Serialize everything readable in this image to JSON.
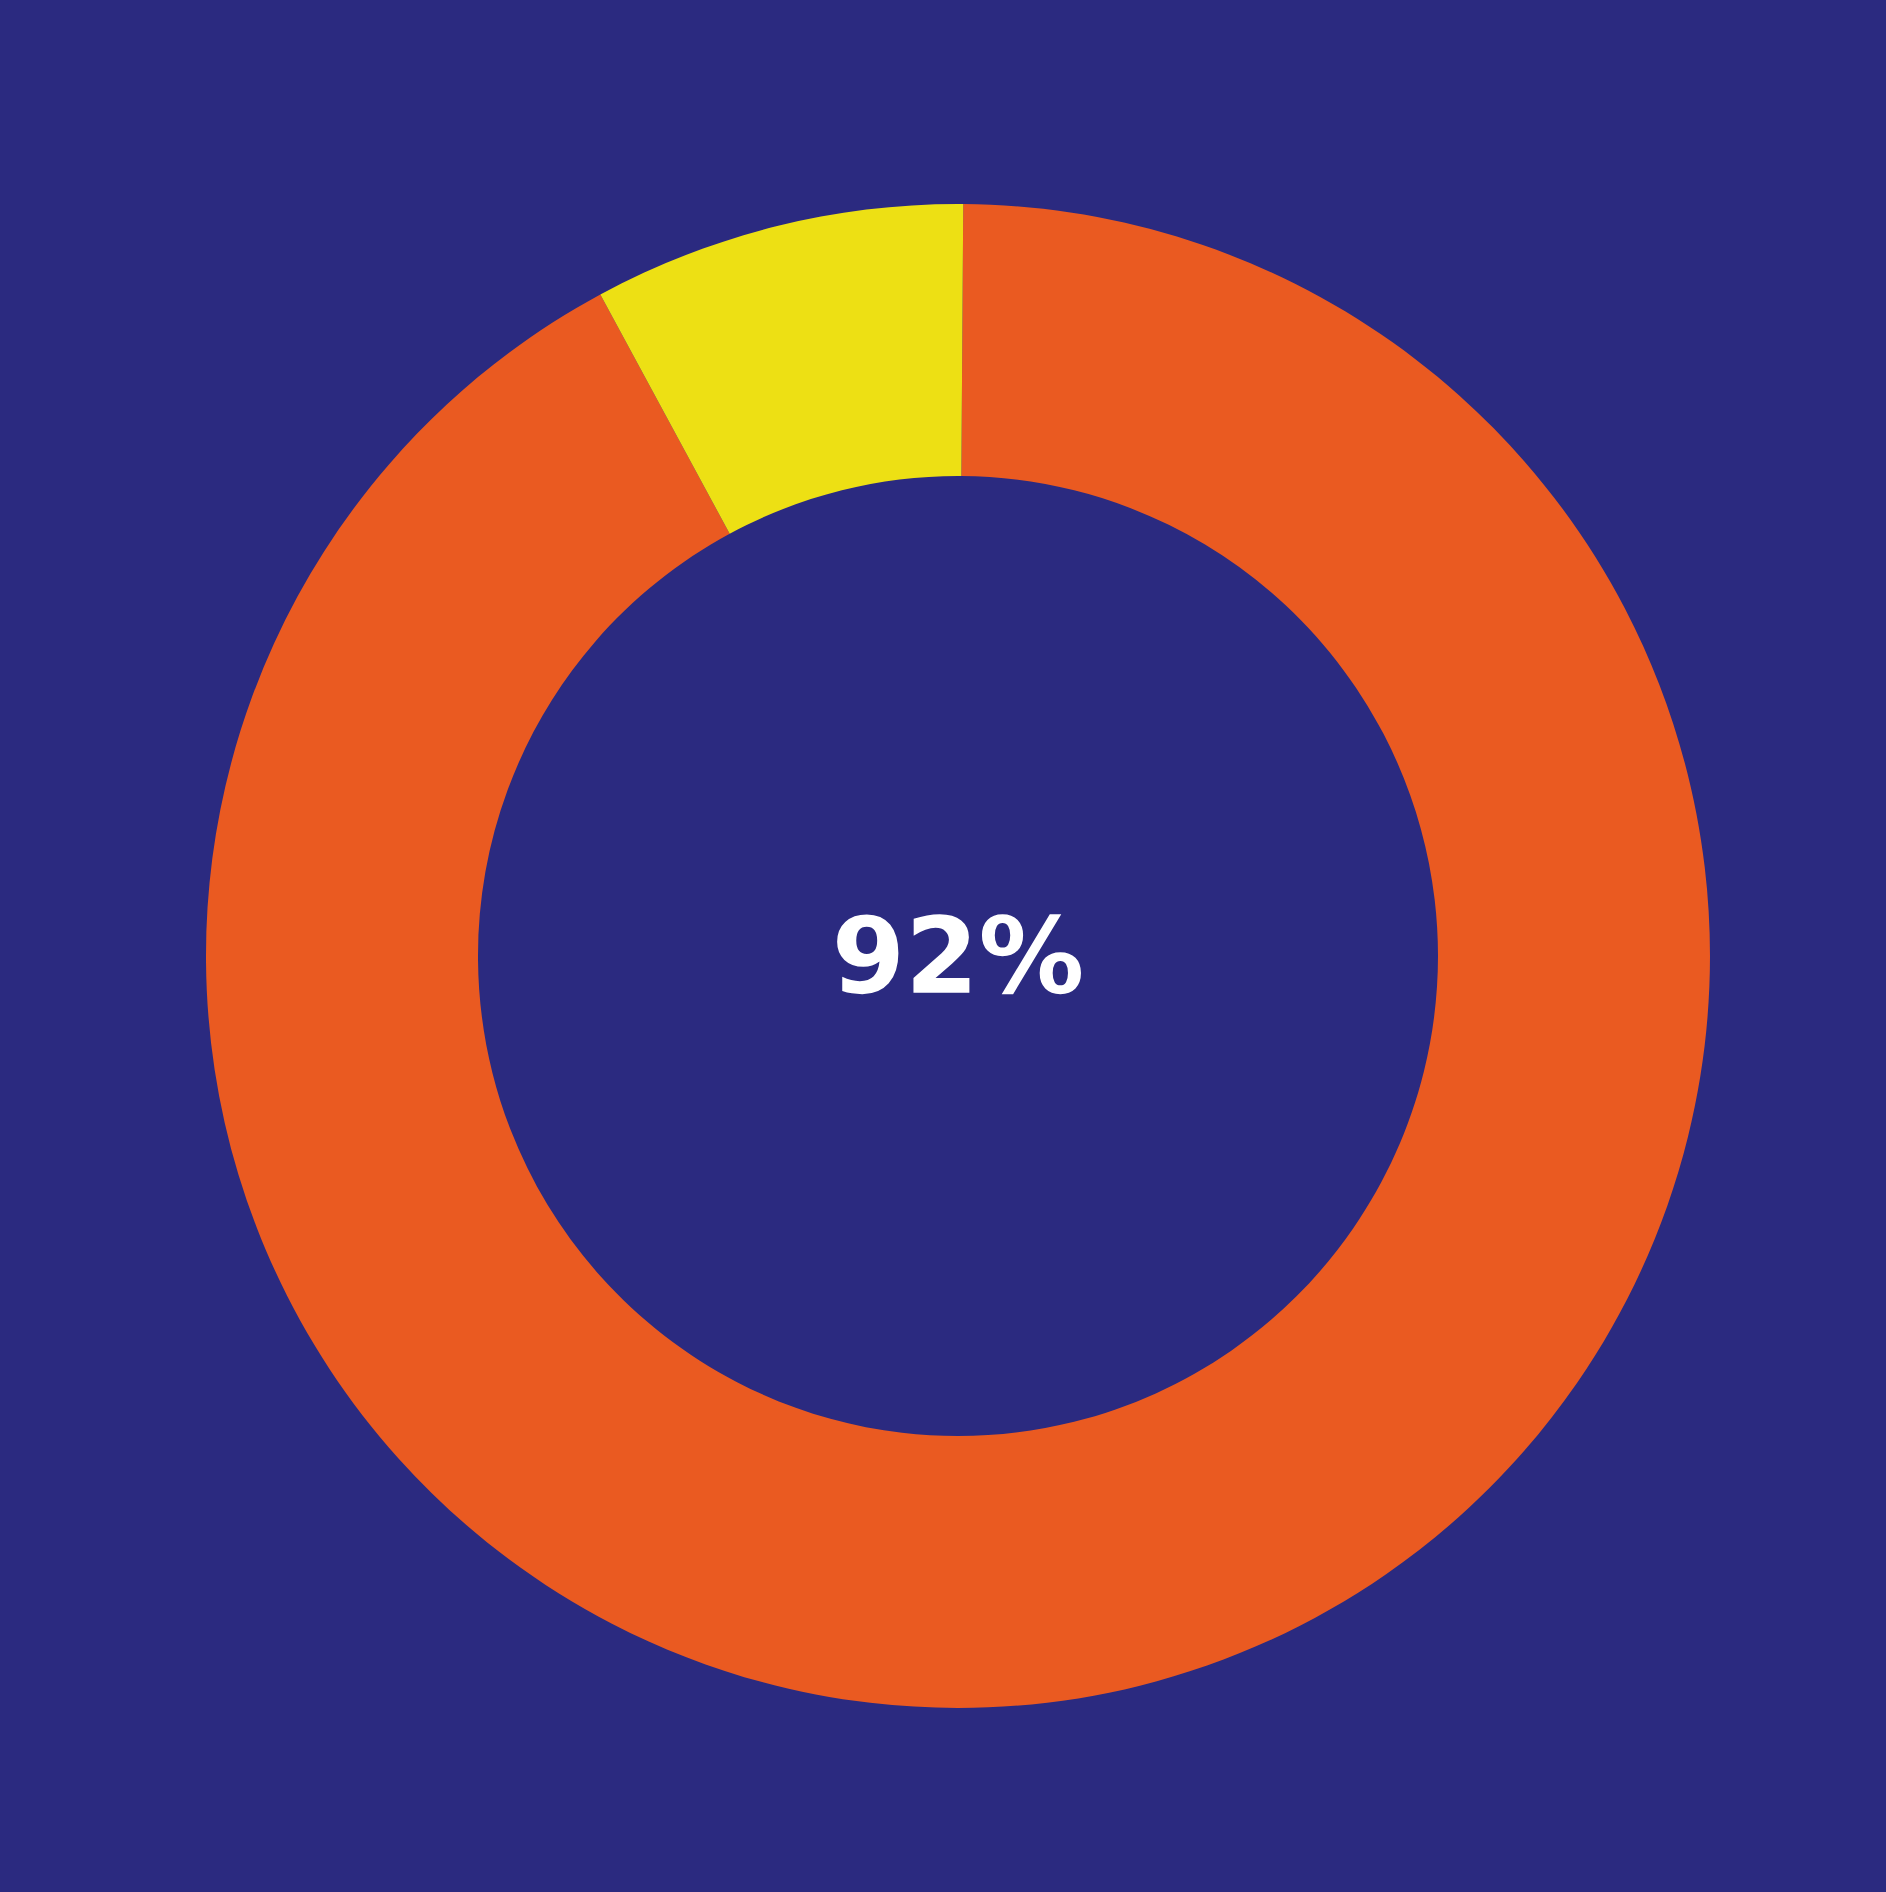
{
  "chart_data": {
    "type": "donut",
    "categories": [
      null,
      null
    ],
    "values": [
      92,
      8
    ],
    "colors": [
      "#ea5a21",
      "#ede014"
    ],
    "annotations": [
      "92%"
    ],
    "legend": false
  }
}
